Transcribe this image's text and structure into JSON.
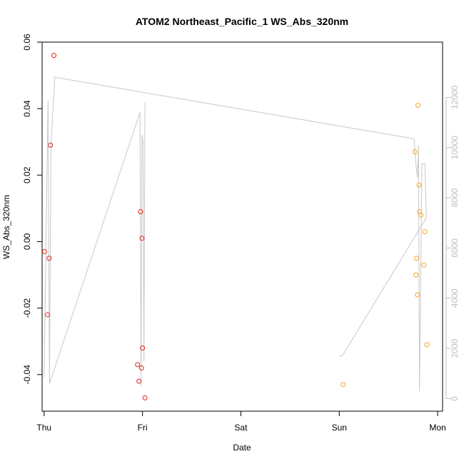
{
  "chart_data": {
    "type": "scatter",
    "title": "ATOM2 Northeast_Pacific_1 WS_Abs_320nm",
    "xlabel": "Date",
    "ylabel": "WS_Abs_320nm",
    "x_ticks": [
      "Thu",
      "Fri",
      "Sat",
      "Sun",
      "Mon"
    ],
    "xlim": [
      -0.02,
      4.05
    ],
    "ylim": [
      -0.051,
      0.06
    ],
    "y_ticks": [
      -0.04,
      -0.02,
      0.0,
      0.02,
      0.04,
      0.06
    ],
    "y2_ticks": [
      0,
      2000,
      4000,
      6000,
      8000,
      10000,
      12000
    ],
    "y2lim": [
      -500,
      14200
    ],
    "grid": false,
    "series": [
      {
        "color": "#e8211e",
        "marker": "open-circle",
        "points": [
          {
            "x": 0.005,
            "y": -0.003
          },
          {
            "x": 0.035,
            "y": -0.022
          },
          {
            "x": 0.05,
            "y": -0.005
          },
          {
            "x": 0.065,
            "y": 0.029
          },
          {
            "x": 0.1,
            "y": 0.056
          },
          {
            "x": 0.95,
            "y": -0.037
          },
          {
            "x": 0.965,
            "y": -0.042
          },
          {
            "x": 0.98,
            "y": 0.009
          },
          {
            "x": 0.99,
            "y": -0.038
          },
          {
            "x": 0.995,
            "y": 0.001
          },
          {
            "x": 1.0,
            "y": -0.032
          },
          {
            "x": 1.025,
            "y": -0.047
          }
        ]
      },
      {
        "color": "#f5a623",
        "marker": "open-circle",
        "points": [
          {
            "x": 3.04,
            "y": -0.043
          },
          {
            "x": 3.77,
            "y": 0.027
          },
          {
            "x": 3.78,
            "y": -0.01
          },
          {
            "x": 3.785,
            "y": -0.005
          },
          {
            "x": 3.795,
            "y": -0.016
          },
          {
            "x": 3.8,
            "y": 0.041
          },
          {
            "x": 3.81,
            "y": 0.017
          },
          {
            "x": 3.815,
            "y": 0.009
          },
          {
            "x": 3.83,
            "y": 0.008
          },
          {
            "x": 3.86,
            "y": -0.007
          },
          {
            "x": 3.87,
            "y": 0.003
          },
          {
            "x": 3.89,
            "y": -0.031
          }
        ]
      },
      {
        "color": "#c8c8c8",
        "type": "line",
        "axis": "right",
        "points": [
          {
            "x": 0.0,
            "y": 850
          },
          {
            "x": 0.04,
            "y": 11850
          },
          {
            "x": 0.055,
            "y": 600
          },
          {
            "x": 0.07,
            "y": 10200
          },
          {
            "x": 0.11,
            "y": 12800
          },
          {
            "x": 3.76,
            "y": 10350
          },
          {
            "x": 3.78,
            "y": 9300
          },
          {
            "x": 3.795,
            "y": 8800
          },
          {
            "x": 3.805,
            "y": 10100
          },
          {
            "x": 3.815,
            "y": 300
          },
          {
            "x": 3.84,
            "y": 9350
          },
          {
            "x": 3.87,
            "y": 9350
          },
          {
            "x": 3.885,
            "y": 7200
          },
          {
            "x": 3.03,
            "y": 1700
          },
          {
            "x": 3.0,
            "y": 1700
          }
        ]
      },
      {
        "color": "#c8c8c8",
        "type": "line",
        "axis": "right",
        "points": [
          {
            "x": 0.055,
            "y": 600
          },
          {
            "x": 0.975,
            "y": 11400
          },
          {
            "x": 0.985,
            "y": 500
          },
          {
            "x": 0.995,
            "y": 10500
          },
          {
            "x": 1.005,
            "y": 10300
          },
          {
            "x": 1.015,
            "y": 1500
          },
          {
            "x": 1.025,
            "y": 11800
          }
        ]
      }
    ]
  }
}
